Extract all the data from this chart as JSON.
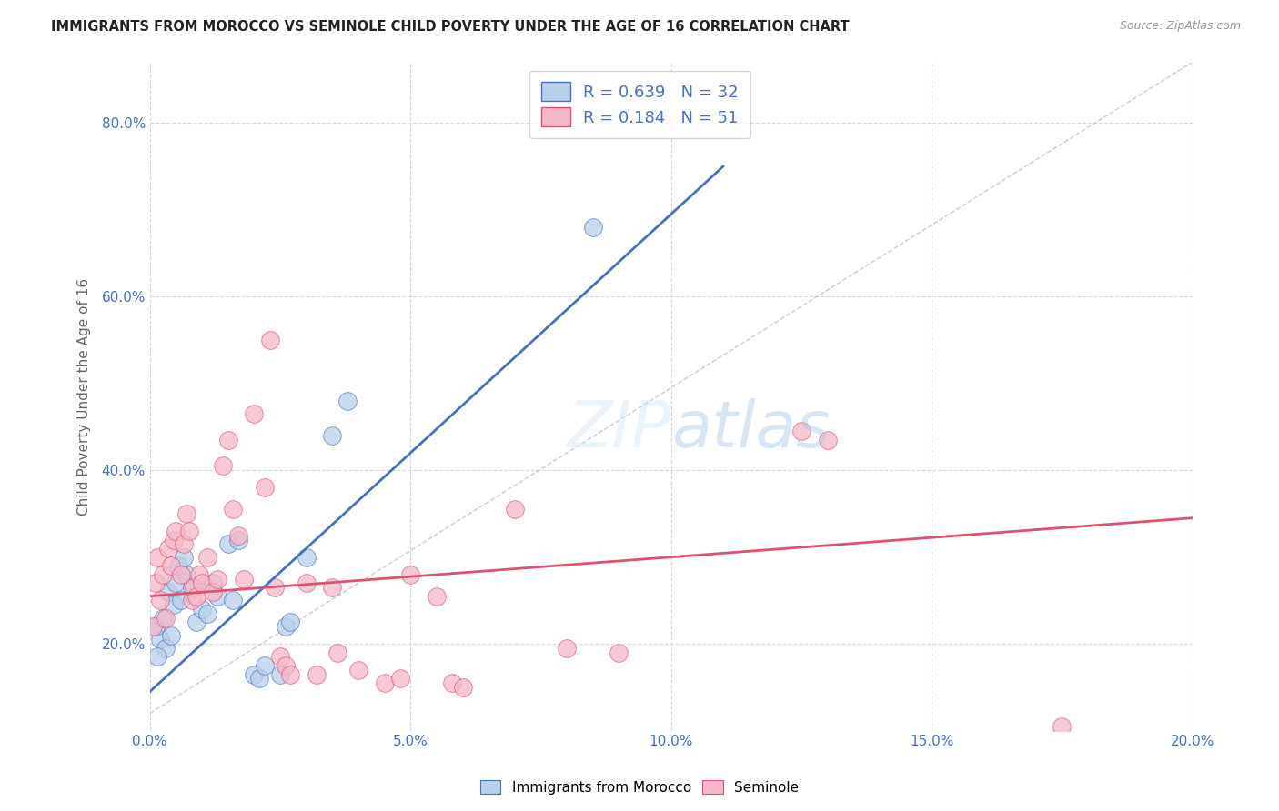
{
  "title": "IMMIGRANTS FROM MOROCCO VS SEMINOLE CHILD POVERTY UNDER THE AGE OF 16 CORRELATION CHART",
  "source": "Source: ZipAtlas.com",
  "ylabel": "Child Poverty Under the Age of 16",
  "legend_label1": "Immigrants from Morocco",
  "legend_label2": "Seminole",
  "R1": "0.639",
  "N1": "32",
  "R2": "0.184",
  "N2": "51",
  "xlim": [
    0.0,
    20.0
  ],
  "ylim": [
    10.0,
    87.0
  ],
  "ytick_vals": [
    20.0,
    40.0,
    60.0,
    80.0
  ],
  "ytick_labels": [
    "20.0%",
    "40.0%",
    "60.0%",
    "80.0%"
  ],
  "xtick_vals": [
    0.0,
    5.0,
    10.0,
    15.0,
    20.0
  ],
  "xtick_labels": [
    "0.0%",
    "5.0%",
    "10.0%",
    "15.0%",
    "20.0%"
  ],
  "color_morocco_fill": "#b8d0ea",
  "color_seminole_fill": "#f5b8c8",
  "color_line_morocco": "#4472c4",
  "color_line_seminole": "#e05070",
  "morocco_scatter_x": [
    0.2,
    0.3,
    0.1,
    0.4,
    0.15,
    0.25,
    0.35,
    0.5,
    0.45,
    0.6,
    0.7,
    0.8,
    0.55,
    0.65,
    0.9,
    1.0,
    1.1,
    1.2,
    1.3,
    1.5,
    1.6,
    1.7,
    2.0,
    2.1,
    2.2,
    2.5,
    2.6,
    2.7,
    3.0,
    3.5,
    3.8,
    8.5
  ],
  "morocco_scatter_y": [
    20.5,
    19.5,
    22.0,
    21.0,
    18.5,
    23.0,
    26.0,
    27.0,
    24.5,
    25.0,
    28.0,
    26.5,
    29.0,
    30.0,
    22.5,
    24.0,
    23.5,
    27.0,
    25.5,
    31.5,
    25.0,
    32.0,
    16.5,
    16.0,
    17.5,
    16.5,
    22.0,
    22.5,
    30.0,
    44.0,
    48.0,
    68.0
  ],
  "seminole_scatter_x": [
    0.05,
    0.1,
    0.15,
    0.2,
    0.25,
    0.3,
    0.35,
    0.4,
    0.45,
    0.5,
    0.6,
    0.65,
    0.7,
    0.75,
    0.8,
    0.85,
    0.9,
    0.95,
    1.0,
    1.1,
    1.2,
    1.3,
    1.4,
    1.5,
    1.6,
    1.7,
    1.8,
    2.0,
    2.2,
    2.4,
    2.5,
    2.6,
    2.7,
    3.0,
    3.2,
    3.5,
    3.6,
    4.0,
    4.5,
    4.8,
    5.0,
    5.5,
    5.8,
    6.0,
    7.0,
    8.0,
    9.0,
    12.5,
    13.0,
    17.5,
    2.3
  ],
  "seminole_scatter_y": [
    22.0,
    27.0,
    30.0,
    25.0,
    28.0,
    23.0,
    31.0,
    29.0,
    32.0,
    33.0,
    28.0,
    31.5,
    35.0,
    33.0,
    25.0,
    26.5,
    25.5,
    28.0,
    27.0,
    30.0,
    26.0,
    27.5,
    40.5,
    43.5,
    35.5,
    32.5,
    27.5,
    46.5,
    38.0,
    26.5,
    18.5,
    17.5,
    16.5,
    27.0,
    16.5,
    26.5,
    19.0,
    17.0,
    15.5,
    16.0,
    28.0,
    25.5,
    15.5,
    15.0,
    35.5,
    19.5,
    19.0,
    44.5,
    43.5,
    10.5,
    55.0
  ],
  "morocco_line_x": [
    0.0,
    11.0
  ],
  "morocco_line_y": [
    14.5,
    75.0
  ],
  "seminole_line_x": [
    0.0,
    20.0
  ],
  "seminole_line_y": [
    25.5,
    34.5
  ],
  "diag_line_x": [
    0.0,
    20.0
  ],
  "diag_line_y": [
    12.0,
    87.0
  ],
  "background_color": "#ffffff",
  "grid_color": "#d8d8d8"
}
